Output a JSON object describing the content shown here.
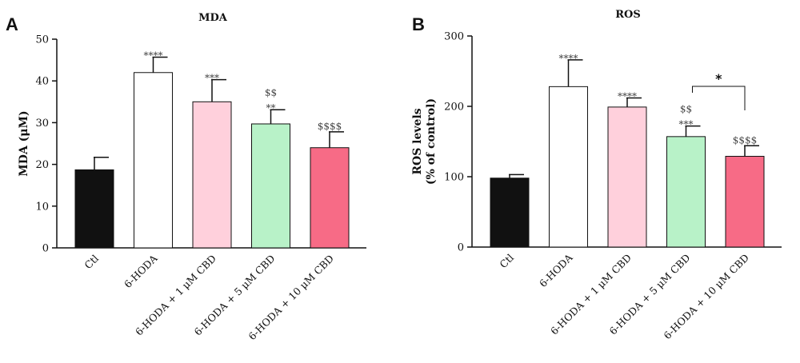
{
  "colors": {
    "ctl": "#111111",
    "hoda": "#ffffff",
    "cbd1": "#ffd0dc",
    "cbd5": "#b8f2c8",
    "cbd10": "#f76b86"
  },
  "chart_data": [
    {
      "panel": "A",
      "type": "bar",
      "title": "MDA",
      "ylabel": "MDA (μM)",
      "ylim": [
        0,
        50
      ],
      "yticks": [
        0,
        10,
        20,
        30,
        40,
        50
      ],
      "categories": [
        "Ctl",
        "6-HODA",
        "6-HODA + 1 μM CBD",
        "6-HODA + 5 μM CBD",
        "6-HODA + 10 μM CBD"
      ],
      "values": [
        18.7,
        42.0,
        35.0,
        29.7,
        24.0
      ],
      "errors": [
        3.0,
        3.7,
        5.3,
        3.4,
        3.8
      ],
      "significance": [
        [],
        [
          "****"
        ],
        [
          "***"
        ],
        [
          "$$",
          "**"
        ],
        [
          "$$$$"
        ]
      ],
      "comparison": null
    },
    {
      "panel": "B",
      "type": "bar",
      "title": "ROS",
      "ylabel": "ROS levels (% of control)",
      "ylim": [
        0,
        300
      ],
      "yticks": [
        0,
        100,
        200,
        300
      ],
      "categories": [
        "Ctl",
        "6-HODA",
        "6-HODA + 1 μM CBD",
        "6-HODA + 5 μM CBD",
        "6-HODA + 10 μM CBD"
      ],
      "values": [
        98,
        228,
        199,
        157,
        129
      ],
      "errors": [
        5,
        38,
        13,
        15,
        15
      ],
      "significance": [
        [],
        [
          "****"
        ],
        [
          "****"
        ],
        [
          "$$",
          "***"
        ],
        [
          "$$$$"
        ]
      ],
      "comparison": {
        "from": 3,
        "to": 4,
        "label": "*"
      }
    }
  ]
}
